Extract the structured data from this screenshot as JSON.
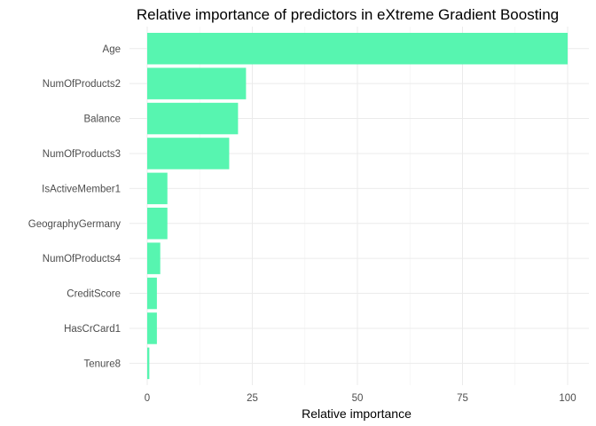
{
  "chart_data": {
    "type": "bar",
    "orientation": "horizontal",
    "title": "Relative importance of predictors in eXtreme Gradient Boosting",
    "xlabel": "Relative importance",
    "ylabel": "",
    "xlim": [
      0,
      100
    ],
    "xticks": [
      0,
      25,
      50,
      75,
      100
    ],
    "grid": true,
    "legend": "none",
    "bar_color": "#57f5b0",
    "categories": [
      "Age",
      "NumOfProducts2",
      "Balance",
      "NumOfProducts3",
      "IsActiveMember1",
      "GeographyGermany",
      "NumOfProducts4",
      "CreditScore",
      "HasCrCard1",
      "Tenure8"
    ],
    "values": [
      100,
      23.5,
      21.6,
      19.5,
      4.8,
      4.8,
      3.1,
      2.3,
      2.3,
      0.5
    ]
  }
}
